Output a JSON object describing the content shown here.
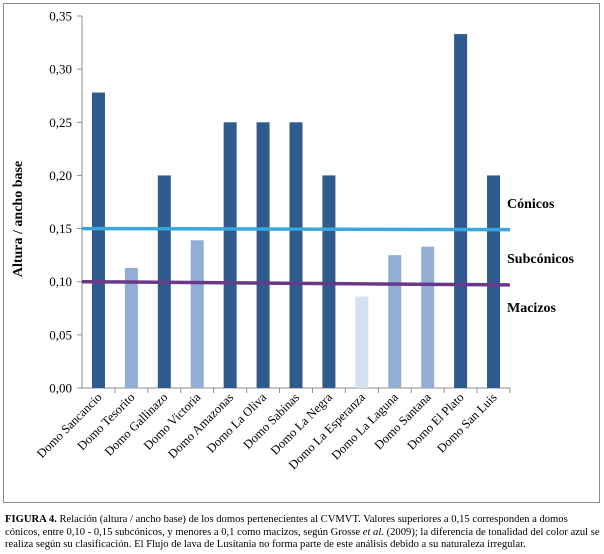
{
  "chart_data": {
    "type": "bar",
    "title": "",
    "xlabel": "",
    "ylabel": "Altura / ancho base",
    "ylim": [
      0,
      0.35
    ],
    "yticks": [
      "0,00",
      "0,05",
      "0,10",
      "0,15",
      "0,20",
      "0,25",
      "0,30",
      "0,35"
    ],
    "grid": false,
    "categories": [
      "Domo Sancancio",
      "Domo Tesorito",
      "Domo Gallinazo",
      "Domo Victoria",
      "Domo Amazonas",
      "Domo La Oliva",
      "Domo Sabinas",
      "Domo La Negra",
      "Domo La Esperanza",
      "Domo La Laguna",
      "Domo Santana",
      "Domo El Plato",
      "Domo San Luis"
    ],
    "values": [
      0.278,
      0.113,
      0.2,
      0.139,
      0.25,
      0.25,
      0.25,
      0.2,
      0.086,
      0.125,
      0.133,
      0.333,
      0.2
    ],
    "bar_colors": [
      "#2e5a8e",
      "#93aed4",
      "#2e5a8e",
      "#93aed4",
      "#2e5a8e",
      "#2e5a8e",
      "#2e5a8e",
      "#2e5a8e",
      "#d6e1ef",
      "#93aed4",
      "#93aed4",
      "#2e5a8e",
      "#2e5a8e"
    ],
    "reference_lines": [
      {
        "label": "Cónicos",
        "y_start": 0.15,
        "y_end": 0.149,
        "color": "#3aa7dc"
      },
      {
        "label": "Macizos",
        "y_start": 0.1,
        "y_end": 0.097,
        "color": "#6a3a8a"
      }
    ],
    "annotations": [
      "Cónicos",
      "Subcónicos",
      "Macizos"
    ]
  },
  "caption": {
    "label": "FIGURA 4.",
    "text": " Relación (altura / ancho base) de los domos pertenecientes al CVMVT. Valores superiores a 0,15 corresponden a domos cónicos, entre 0,10 - 0,15 subcónicos, y menores a 0,1 como macizos, según Grosse ",
    "etal": "et al.",
    "text_end": " (2009); la diferencia de tonalidad del color azul se realiza según su clasificación. El Flujo de lava de Lusitania no forma parte de este análisis debido a su naturaleza irregular."
  }
}
